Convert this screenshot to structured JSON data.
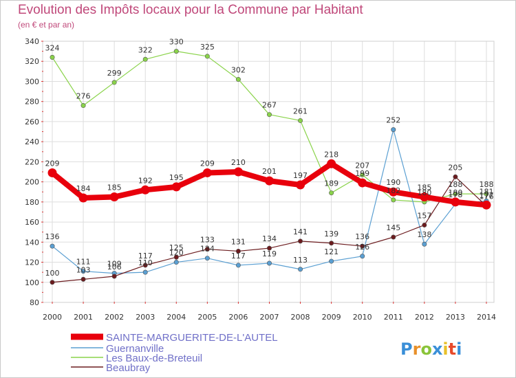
{
  "page": {
    "title": "Evolution des Impôts locaux pour la Commune par Habitant",
    "subtitle": "(en € et par an)",
    "logo_text": "Proxiti"
  },
  "chart_data": {
    "type": "line",
    "title": "Evolution des Impôts locaux pour la Commune par Habitant",
    "subtitle": "(en € et par an)",
    "xlabel": "",
    "ylabel": "",
    "x": [
      "2000",
      "2001",
      "2002",
      "2003",
      "2004",
      "2005",
      "2006",
      "2007",
      "2008",
      "2009",
      "2010",
      "2011",
      "2012",
      "2013",
      "2014"
    ],
    "ylim": [
      80,
      340
    ],
    "yticks": [
      80,
      100,
      120,
      140,
      160,
      180,
      200,
      220,
      240,
      260,
      280,
      300,
      320,
      340
    ],
    "grid": true,
    "legend_position": "bottom-left",
    "series": [
      {
        "name": "SAINTE-MARGUERITE-DE-L'AUTEL",
        "color": "#e8000c",
        "values": [
          209,
          184,
          185,
          192,
          195,
          209,
          210,
          201,
          197,
          218,
          199,
          190,
          185,
          180,
          177
        ],
        "labels": [
          "209",
          "184",
          "185",
          "192",
          "195",
          "209",
          "210",
          "201",
          "197",
          "218",
          "199",
          "190",
          "185",
          "180",
          "177"
        ]
      },
      {
        "name": "Guernanville",
        "color": "#5a9fd2",
        "values": [
          136,
          111,
          109,
          110,
          120,
          124,
          117,
          119,
          113,
          121,
          126,
          252,
          138,
          178,
          181
        ],
        "labels": [
          "136",
          "111",
          "109",
          "110",
          "120",
          "124",
          "117",
          "119",
          "113",
          "121",
          "126",
          "252",
          "138",
          "178",
          "181"
        ]
      },
      {
        "name": "Les Baux-de-Breteuil",
        "color": "#8ad34a",
        "values": [
          324,
          276,
          299,
          322,
          330,
          325,
          302,
          267,
          261,
          189,
          207,
          182,
          180,
          188,
          188
        ],
        "labels": [
          "324",
          "276",
          "299",
          "322",
          "330",
          "325",
          "302",
          "267",
          "261",
          "189",
          "207",
          "182",
          "180",
          "188",
          "188"
        ]
      },
      {
        "name": "Beaubray",
        "color": "#6b1b1e",
        "values": [
          100,
          103,
          106,
          117,
          125,
          133,
          131,
          134,
          141,
          139,
          136,
          145,
          157,
          205,
          176
        ],
        "labels": [
          "100",
          "103",
          "106",
          "117",
          "125",
          "133",
          "131",
          "134",
          "141",
          "139",
          "136",
          "145",
          "157",
          "205",
          "176"
        ]
      }
    ]
  },
  "colors": {
    "title": "#c0487a",
    "grid": "#dddddd",
    "axis_tick": "#e03030",
    "legend_text": "#7070c8"
  }
}
